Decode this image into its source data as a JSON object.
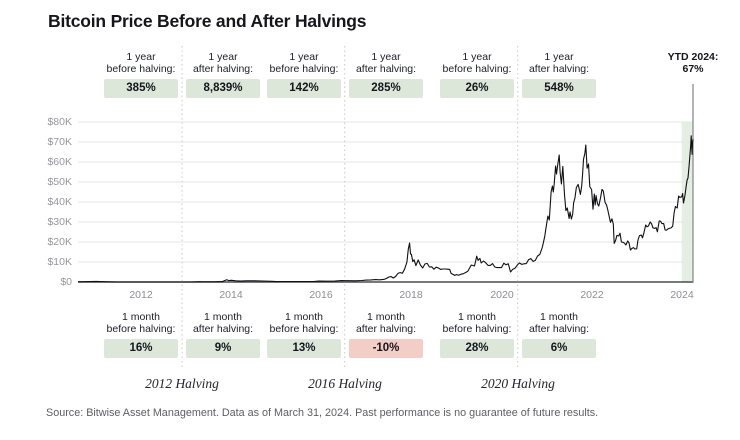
{
  "title": "Bitcoin Price Before and After Halvings",
  "source_note": "Source: Bitwise Asset Management. Data as of March 31, 2024. Past performance is no guarantee of future results.",
  "stat_labels": {
    "year_line1": "1 year",
    "month_line1": "1 month",
    "before_line2": "before halving:",
    "after_line2": "after halving:"
  },
  "colors": {
    "badge_green": "#dce7da",
    "badge_red": "#f2cec6",
    "ytd_band_green": "#e4eee3",
    "price_line": "#101013",
    "gridline": "#e6e6e7",
    "zero_axis": "#4b4b52",
    "dotted_guide": "#c7cbc7",
    "axis_text": "#96969c"
  },
  "chart_data": {
    "type": "line",
    "title": "Bitcoin Price Before and After Halvings",
    "xlabel": "",
    "ylabel": "",
    "grid": "horizontal",
    "legend": "none",
    "xlim": [
      2010.6,
      2024.25
    ],
    "ylim": [
      0,
      80000
    ],
    "x_ticks": [
      2012,
      2014,
      2016,
      2018,
      2020,
      2022,
      2024
    ],
    "y_ticks": [
      {
        "label": "$80K",
        "value": 80000
      },
      {
        "label": "$70K",
        "value": 70000
      },
      {
        "label": "$60K",
        "value": 60000
      },
      {
        "label": "$50K",
        "value": 50000
      },
      {
        "label": "$40K",
        "value": 40000
      },
      {
        "label": "$30K",
        "value": 30000
      },
      {
        "label": "$20K",
        "value": 20000
      },
      {
        "label": "$10K",
        "value": 10000
      },
      {
        "label": "$0",
        "value": 0
      }
    ],
    "halvings": [
      {
        "label": "2012 Halving",
        "date": 2012.91,
        "y1_before": "385%",
        "y1_after": "8,839%",
        "m1_before": "16%",
        "m1_after": "9%"
      },
      {
        "label": "2016 Halving",
        "date": 2016.52,
        "y1_before": "142%",
        "y1_after": "285%",
        "m1_before": "13%",
        "m1_after": "-10%"
      },
      {
        "label": "2020 Halving",
        "date": 2020.36,
        "y1_before": "26%",
        "y1_after": "548%",
        "m1_before": "28%",
        "m1_after": "6%"
      }
    ],
    "ytd": {
      "line1": "YTD 2024:",
      "line2": "67%",
      "band": [
        2024.0,
        2024.25
      ],
      "line_date": 2024.25
    },
    "series": [
      {
        "name": "Bitcoin price (USD)",
        "points": [
          [
            2010.6,
            100
          ],
          [
            2011.0,
            300
          ],
          [
            2011.45,
            17
          ],
          [
            2011.9,
            3
          ],
          [
            2012.1,
            5
          ],
          [
            2012.4,
            5
          ],
          [
            2012.7,
            9
          ],
          [
            2012.91,
            12
          ],
          [
            2013.1,
            20
          ],
          [
            2013.25,
            100
          ],
          [
            2013.3,
            140
          ],
          [
            2013.35,
            98
          ],
          [
            2013.6,
            100
          ],
          [
            2013.8,
            200
          ],
          [
            2013.9,
            1150
          ],
          [
            2013.95,
            700
          ],
          [
            2014.0,
            840
          ],
          [
            2014.1,
            620
          ],
          [
            2014.2,
            450
          ],
          [
            2014.35,
            590
          ],
          [
            2014.5,
            600
          ],
          [
            2014.7,
            480
          ],
          [
            2014.9,
            350
          ],
          [
            2015.0,
            220
          ],
          [
            2015.1,
            250
          ],
          [
            2015.25,
            240
          ],
          [
            2015.5,
            260
          ],
          [
            2015.7,
            230
          ],
          [
            2015.85,
            320
          ],
          [
            2015.95,
            430
          ],
          [
            2016.1,
            420
          ],
          [
            2016.3,
            450
          ],
          [
            2016.45,
            680
          ],
          [
            2016.52,
            650
          ],
          [
            2016.6,
            660
          ],
          [
            2016.75,
            610
          ],
          [
            2016.9,
            730
          ],
          [
            2017.0,
            960
          ],
          [
            2017.1,
            1050
          ],
          [
            2017.2,
            1190
          ],
          [
            2017.3,
            1080
          ],
          [
            2017.4,
            1350
          ],
          [
            2017.45,
            1800
          ],
          [
            2017.5,
            2500
          ],
          [
            2017.55,
            2700
          ],
          [
            2017.6,
            2000
          ],
          [
            2017.65,
            2750
          ],
          [
            2017.7,
            4300
          ],
          [
            2017.75,
            4700
          ],
          [
            2017.8,
            4400
          ],
          [
            2017.85,
            6400
          ],
          [
            2017.9,
            9900
          ],
          [
            2017.93,
            16500
          ],
          [
            2017.96,
            19500
          ],
          [
            2017.98,
            14000
          ],
          [
            2018.0,
            13800
          ],
          [
            2018.03,
            10200
          ],
          [
            2018.06,
            11100
          ],
          [
            2018.1,
            8200
          ],
          [
            2018.15,
            11000
          ],
          [
            2018.2,
            8500
          ],
          [
            2018.25,
            7000
          ],
          [
            2018.3,
            9000
          ],
          [
            2018.35,
            9300
          ],
          [
            2018.4,
            7500
          ],
          [
            2018.45,
            7600
          ],
          [
            2018.5,
            6400
          ],
          [
            2018.55,
            7400
          ],
          [
            2018.6,
            7000
          ],
          [
            2018.65,
            6300
          ],
          [
            2018.7,
            6500
          ],
          [
            2018.75,
            6500
          ],
          [
            2018.8,
            6400
          ],
          [
            2018.85,
            6300
          ],
          [
            2018.88,
            4300
          ],
          [
            2018.92,
            3800
          ],
          [
            2018.96,
            3300
          ],
          [
            2019.0,
            3700
          ],
          [
            2019.05,
            3400
          ],
          [
            2019.1,
            3900
          ],
          [
            2019.15,
            4100
          ],
          [
            2019.25,
            5300
          ],
          [
            2019.33,
            8500
          ],
          [
            2019.4,
            8000
          ],
          [
            2019.45,
            12900
          ],
          [
            2019.48,
            10800
          ],
          [
            2019.52,
            11800
          ],
          [
            2019.55,
            9500
          ],
          [
            2019.6,
            10500
          ],
          [
            2019.65,
            9600
          ],
          [
            2019.7,
            8300
          ],
          [
            2019.75,
            8300
          ],
          [
            2019.8,
            9200
          ],
          [
            2019.85,
            7500
          ],
          [
            2019.9,
            7200
          ],
          [
            2019.95,
            7200
          ],
          [
            2020.0,
            7200
          ],
          [
            2020.05,
            9400
          ],
          [
            2020.1,
            8600
          ],
          [
            2020.15,
            9100
          ],
          [
            2020.2,
            5000
          ],
          [
            2020.25,
            6400
          ],
          [
            2020.3,
            6900
          ],
          [
            2020.36,
            8700
          ],
          [
            2020.4,
            9500
          ],
          [
            2020.45,
            8800
          ],
          [
            2020.5,
            9100
          ],
          [
            2020.55,
            9200
          ],
          [
            2020.6,
            11100
          ],
          [
            2020.65,
            11700
          ],
          [
            2020.7,
            10300
          ],
          [
            2020.75,
            10800
          ],
          [
            2020.8,
            13000
          ],
          [
            2020.85,
            13800
          ],
          [
            2020.9,
            17000
          ],
          [
            2020.93,
            19700
          ],
          [
            2020.96,
            23000
          ],
          [
            2021.0,
            29000
          ],
          [
            2021.03,
            33000
          ],
          [
            2021.06,
            31000
          ],
          [
            2021.08,
            38000
          ],
          [
            2021.1,
            45000
          ],
          [
            2021.13,
            48000
          ],
          [
            2021.15,
            45000
          ],
          [
            2021.17,
            49000
          ],
          [
            2021.2,
            58000
          ],
          [
            2021.22,
            54000
          ],
          [
            2021.25,
            58900
          ],
          [
            2021.28,
            63500
          ],
          [
            2021.3,
            55000
          ],
          [
            2021.33,
            49000
          ],
          [
            2021.36,
            57800
          ],
          [
            2021.4,
            43000
          ],
          [
            2021.43,
            35700
          ],
          [
            2021.46,
            37000
          ],
          [
            2021.5,
            31800
          ],
          [
            2021.52,
            35000
          ],
          [
            2021.55,
            31500
          ],
          [
            2021.58,
            34000
          ],
          [
            2021.6,
            39500
          ],
          [
            2021.63,
            42200
          ],
          [
            2021.66,
            47100
          ],
          [
            2021.7,
            48800
          ],
          [
            2021.72,
            47000
          ],
          [
            2021.75,
            43800
          ],
          [
            2021.78,
            48000
          ],
          [
            2021.8,
            54000
          ],
          [
            2021.82,
            61300
          ],
          [
            2021.85,
            64400
          ],
          [
            2021.87,
            68500
          ],
          [
            2021.9,
            56900
          ],
          [
            2021.93,
            59000
          ],
          [
            2021.96,
            47700
          ],
          [
            2022.0,
            46200
          ],
          [
            2022.03,
            36400
          ],
          [
            2022.06,
            44000
          ],
          [
            2022.08,
            38500
          ],
          [
            2022.1,
            43200
          ],
          [
            2022.13,
            39100
          ],
          [
            2022.16,
            38000
          ],
          [
            2022.2,
            42300
          ],
          [
            2022.23,
            46300
          ],
          [
            2022.26,
            45500
          ],
          [
            2022.3,
            39700
          ],
          [
            2022.33,
            38600
          ],
          [
            2022.36,
            36000
          ],
          [
            2022.4,
            31800
          ],
          [
            2022.42,
            29800
          ],
          [
            2022.45,
            31600
          ],
          [
            2022.48,
            29000
          ],
          [
            2022.5,
            19300
          ],
          [
            2022.53,
            20600
          ],
          [
            2022.56,
            23300
          ],
          [
            2022.6,
            23000
          ],
          [
            2022.63,
            24400
          ],
          [
            2022.66,
            20000
          ],
          [
            2022.7,
            19800
          ],
          [
            2022.73,
            19400
          ],
          [
            2022.76,
            18500
          ],
          [
            2022.8,
            20500
          ],
          [
            2022.83,
            19600
          ],
          [
            2022.86,
            16000
          ],
          [
            2022.9,
            16900
          ],
          [
            2022.93,
            17200
          ],
          [
            2022.96,
            16500
          ],
          [
            2023.0,
            16600
          ],
          [
            2023.03,
            21000
          ],
          [
            2023.06,
            23100
          ],
          [
            2023.1,
            23500
          ],
          [
            2023.13,
            22100
          ],
          [
            2023.16,
            24600
          ],
          [
            2023.2,
            28500
          ],
          [
            2023.23,
            27600
          ],
          [
            2023.26,
            28000
          ],
          [
            2023.3,
            30000
          ],
          [
            2023.33,
            29200
          ],
          [
            2023.36,
            27100
          ],
          [
            2023.4,
            26800
          ],
          [
            2023.43,
            27200
          ],
          [
            2023.46,
            25100
          ],
          [
            2023.5,
            30500
          ],
          [
            2023.53,
            30400
          ],
          [
            2023.56,
            29200
          ],
          [
            2023.6,
            29200
          ],
          [
            2023.63,
            26000
          ],
          [
            2023.66,
            25900
          ],
          [
            2023.7,
            26600
          ],
          [
            2023.73,
            26900
          ],
          [
            2023.76,
            27000
          ],
          [
            2023.8,
            27900
          ],
          [
            2023.83,
            34500
          ],
          [
            2023.86,
            37700
          ],
          [
            2023.9,
            37000
          ],
          [
            2023.93,
            43000
          ],
          [
            2023.96,
            42300
          ],
          [
            2024.0,
            42600
          ],
          [
            2024.02,
            44200
          ],
          [
            2024.04,
            39500
          ],
          [
            2024.07,
            43100
          ],
          [
            2024.1,
            48000
          ],
          [
            2024.12,
            51000
          ],
          [
            2024.14,
            52000
          ],
          [
            2024.16,
            57000
          ],
          [
            2024.18,
            62500
          ],
          [
            2024.2,
            68300
          ],
          [
            2024.21,
            73100
          ],
          [
            2024.22,
            68900
          ],
          [
            2024.23,
            63800
          ],
          [
            2024.24,
            69800
          ],
          [
            2024.25,
            71300
          ]
        ]
      }
    ]
  }
}
